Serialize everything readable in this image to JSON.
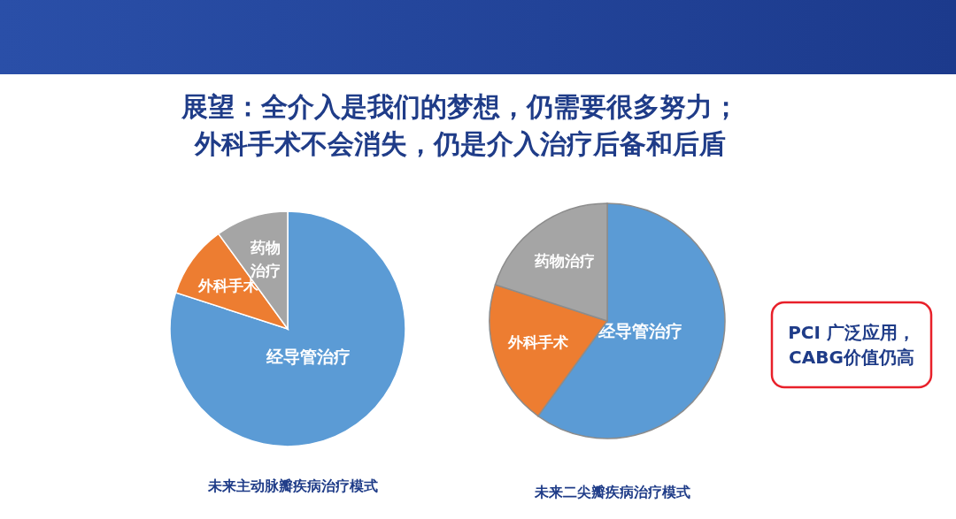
{
  "chart_data": [
    {
      "type": "other",
      "annotations": [
        "展望：全介入是我们的梦想，仍需要很多努力；",
        "外科手术不会消失，仍是介入治疗后备和后盾"
      ]
    },
    {
      "type": "pie",
      "title": "未来主动脉瓣疾病治疗模式",
      "categories": [
        "经导管治疗",
        "外科手术",
        "药物治疗"
      ],
      "values": [
        80,
        10,
        10
      ],
      "colors": [
        "#5b9bd5",
        "#ed7d31",
        "#a5a5a5"
      ]
    },
    {
      "type": "pie",
      "title": "未来二尖瓣疾病治疗模式",
      "categories": [
        "经导管治疗",
        "外科手术",
        "药物治疗"
      ],
      "values": [
        60,
        20,
        20
      ],
      "colors": [
        "#5b9bd5",
        "#ed7d31",
        "#a5a5a5"
      ]
    },
    {
      "type": "other",
      "annotations": [
        "PCI 广泛应用，",
        "CABG价值仍高"
      ]
    }
  ]
}
